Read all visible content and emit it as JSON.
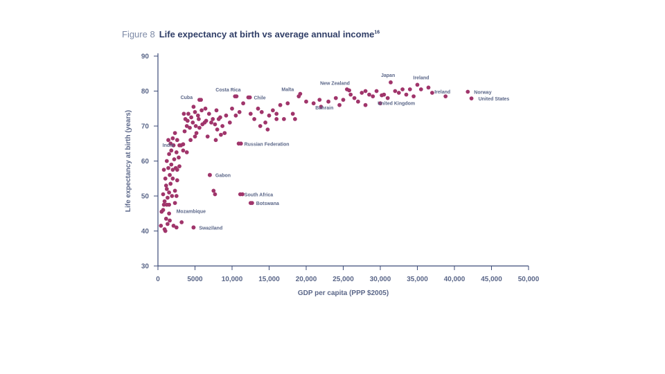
{
  "caption": {
    "figure": "Figure 8",
    "title": "Life expectancy at birth vs average annual income",
    "note": "16"
  },
  "colors": {
    "point": "#a0356b",
    "axis": "#3b4a77",
    "text": "#5a6688"
  },
  "chart_data": {
    "type": "scatter",
    "title": "Life expectancy at birth vs average annual income",
    "xlabel": "GDP per capita (PPP $2005)",
    "ylabel": "Life expectancy at birth (years)",
    "xlim": [
      0,
      50000
    ],
    "ylim": [
      30,
      90
    ],
    "xticks": [
      0,
      5000,
      10000,
      15000,
      20000,
      25000,
      30000,
      35000,
      40000,
      45000,
      50000
    ],
    "xtick_labels": [
      "0",
      "5000",
      "10,000",
      "15,000",
      "20,000",
      "25,000",
      "30,000",
      "35,000",
      "40,000",
      "45,000",
      "50,000"
    ],
    "yticks": [
      30,
      40,
      50,
      60,
      70,
      80,
      90
    ],
    "ytick_labels": [
      "30",
      "40",
      "50",
      "60",
      "70",
      "80",
      "90"
    ],
    "labeled_points": [
      {
        "name": "Japan",
        "x": 31400,
        "y": 82.5
      },
      {
        "name": "Ireland",
        "x": 35000,
        "y": 81.8
      },
      {
        "name": "New Zealand",
        "x": 25800,
        "y": 80.2
      },
      {
        "name": "Ireland",
        "x": 38800,
        "y": 78.5
      },
      {
        "name": "Norway",
        "x": 41800,
        "y": 79.8
      },
      {
        "name": "United States",
        "x": 42300,
        "y": 77.9
      },
      {
        "name": "United Kingdom",
        "x": 30200,
        "y": 78.8
      },
      {
        "name": "Bahrain",
        "x": 21800,
        "y": 77.5
      },
      {
        "name": "Malta",
        "x": 19200,
        "y": 79.2
      },
      {
        "name": "Costa Rica",
        "x": 10400,
        "y": 78.5
      },
      {
        "name": "Chile",
        "x": 12200,
        "y": 78.2
      },
      {
        "name": "Cuba",
        "x": 5800,
        "y": 77.5
      },
      {
        "name": "India",
        "x": 2900,
        "y": 64.5
      },
      {
        "name": "Russian Federation",
        "x": 10900,
        "y": 65.0
      },
      {
        "name": "Gabon",
        "x": 7000,
        "y": 56.0
      },
      {
        "name": "South Africa",
        "x": 11100,
        "y": 50.5
      },
      {
        "name": "Botswana",
        "x": 12500,
        "y": 48.0
      },
      {
        "name": "Mozambique",
        "x": 800,
        "y": 47.5
      },
      {
        "name": "Swaziland",
        "x": 4800,
        "y": 41.0
      }
    ],
    "points": [
      [
        400,
        41.5
      ],
      [
        500,
        45.5
      ],
      [
        700,
        46
      ],
      [
        900,
        40.5
      ],
      [
        1100,
        43.5
      ],
      [
        1300,
        42
      ],
      [
        1500,
        47.5
      ],
      [
        900,
        48.5
      ],
      [
        700,
        50.5
      ],
      [
        1200,
        52
      ],
      [
        1000,
        55
      ],
      [
        800,
        57.5
      ],
      [
        1400,
        58
      ],
      [
        1600,
        56
      ],
      [
        1800,
        59
      ],
      [
        2000,
        57.5
      ],
      [
        2200,
        60.5
      ],
      [
        2400,
        58
      ],
      [
        2600,
        57.5
      ],
      [
        2000,
        55
      ],
      [
        1700,
        53.5
      ],
      [
        1500,
        51
      ],
      [
        1300,
        49.5
      ],
      [
        1100,
        53
      ],
      [
        1900,
        50
      ],
      [
        2300,
        51.5
      ],
      [
        2600,
        54.5
      ],
      [
        2900,
        58.5
      ],
      [
        1200,
        60
      ],
      [
        1500,
        62
      ],
      [
        1800,
        63
      ],
      [
        2100,
        64.5
      ],
      [
        2500,
        62.5
      ],
      [
        2800,
        61
      ],
      [
        3100,
        64.5
      ],
      [
        1400,
        66
      ],
      [
        1700,
        65
      ],
      [
        2000,
        66.5
      ],
      [
        2300,
        68
      ],
      [
        2600,
        66
      ],
      [
        3400,
        63
      ],
      [
        3900,
        62.5
      ],
      [
        3600,
        68.5
      ],
      [
        3900,
        70
      ],
      [
        4300,
        69.5
      ],
      [
        4700,
        71
      ],
      [
        5100,
        70
      ],
      [
        5500,
        72
      ],
      [
        6000,
        70.5
      ],
      [
        6500,
        71.5
      ],
      [
        3700,
        72
      ],
      [
        4100,
        73.5
      ],
      [
        4500,
        72.5
      ],
      [
        5000,
        74
      ],
      [
        5400,
        73
      ],
      [
        5900,
        74.5
      ],
      [
        6400,
        75
      ],
      [
        6900,
        73.5
      ],
      [
        7400,
        72
      ],
      [
        7900,
        74.5
      ],
      [
        8400,
        72.5
      ],
      [
        3500,
        73.5
      ],
      [
        4000,
        71.5
      ],
      [
        5200,
        68
      ],
      [
        5600,
        69.5
      ],
      [
        6700,
        67
      ],
      [
        7200,
        71
      ],
      [
        7700,
        70.5
      ],
      [
        8200,
        72
      ],
      [
        8700,
        70
      ],
      [
        9200,
        73
      ],
      [
        9700,
        71
      ],
      [
        8000,
        69
      ],
      [
        8500,
        67.5
      ],
      [
        9000,
        68
      ],
      [
        7800,
        66
      ],
      [
        6300,
        71
      ],
      [
        5000,
        67
      ],
      [
        4400,
        66
      ],
      [
        4800,
        75.5
      ],
      [
        10000,
        75
      ],
      [
        10500,
        73
      ],
      [
        11000,
        74
      ],
      [
        11500,
        76.5
      ],
      [
        12500,
        73.5
      ],
      [
        13000,
        72
      ],
      [
        13500,
        75
      ],
      [
        14000,
        74
      ],
      [
        14500,
        71
      ],
      [
        15000,
        73
      ],
      [
        15500,
        74.5
      ],
      [
        16000,
        72
      ],
      [
        16500,
        76
      ],
      [
        13800,
        70
      ],
      [
        14800,
        69
      ],
      [
        17500,
        76.5
      ],
      [
        18200,
        73.5
      ],
      [
        17000,
        72
      ],
      [
        18500,
        72
      ],
      [
        20000,
        77
      ],
      [
        21000,
        76.5
      ],
      [
        22000,
        75.5
      ],
      [
        23000,
        77
      ],
      [
        24000,
        78
      ],
      [
        24500,
        76
      ],
      [
        25000,
        77.5
      ],
      [
        26000,
        79
      ],
      [
        26500,
        78
      ],
      [
        27000,
        77
      ],
      [
        28000,
        80
      ],
      [
        28500,
        79
      ],
      [
        29000,
        78.5
      ],
      [
        29500,
        80
      ],
      [
        30500,
        79
      ],
      [
        31000,
        78
      ],
      [
        32000,
        80
      ],
      [
        32500,
        79.5
      ],
      [
        33000,
        80.5
      ],
      [
        33500,
        79
      ],
      [
        34000,
        80.5
      ],
      [
        34500,
        78.5
      ],
      [
        35500,
        80.5
      ],
      [
        36500,
        81
      ],
      [
        37000,
        79.5
      ],
      [
        25500,
        80.5
      ],
      [
        27500,
        79.5
      ],
      [
        28000,
        76
      ],
      [
        30000,
        76.5
      ],
      [
        16000,
        73.5
      ],
      [
        19000,
        78.5
      ],
      [
        11200,
        65
      ],
      [
        7000,
        56
      ],
      [
        11400,
        50.5
      ],
      [
        12700,
        48
      ],
      [
        1200,
        47.5
      ],
      [
        4800,
        41
      ],
      [
        3400,
        64.8
      ],
      [
        5600,
        77.5
      ],
      [
        10600,
        78.5
      ],
      [
        12400,
        78.2
      ],
      [
        7700,
        50.5
      ],
      [
        7500,
        51.5
      ],
      [
        1000,
        40
      ],
      [
        2500,
        41
      ],
      [
        2100,
        41.5
      ],
      [
        3200,
        42.5
      ],
      [
        1500,
        45
      ],
      [
        2300,
        48
      ],
      [
        2500,
        50
      ],
      [
        1600,
        43
      ]
    ]
  }
}
